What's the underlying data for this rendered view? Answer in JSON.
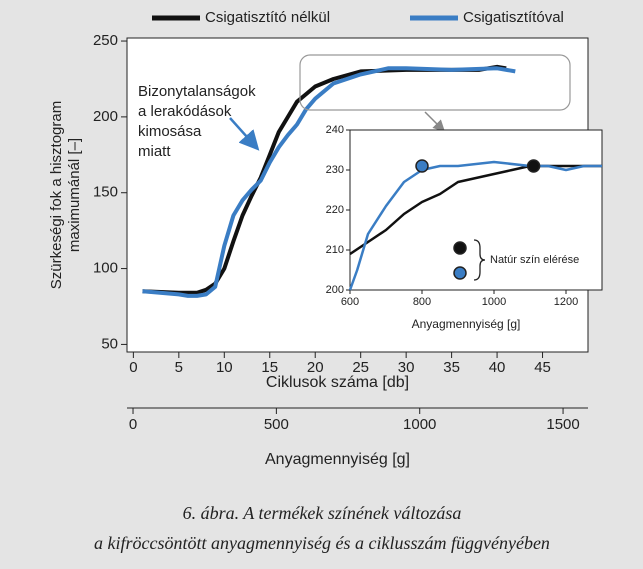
{
  "chart_data": [
    {
      "type": "line",
      "series": [
        {
          "name": "Csigatisztító nélkül",
          "color": "#111111",
          "x": [
            1,
            5,
            7,
            8,
            9,
            10,
            11,
            12,
            13,
            14,
            15,
            16,
            17,
            18,
            19,
            20,
            22,
            25,
            30,
            35,
            38,
            40,
            41
          ],
          "y": [
            85,
            84,
            84,
            86,
            90,
            100,
            118,
            135,
            148,
            160,
            175,
            190,
            200,
            210,
            215,
            220,
            225,
            230,
            231,
            231,
            231,
            233,
            232
          ]
        },
        {
          "name": "Csigatisztítóval",
          "color": "#3a7dc4",
          "x": [
            1,
            5,
            6,
            7,
            8,
            9,
            10,
            11,
            12,
            13,
            14,
            15,
            16,
            17,
            18,
            19,
            20,
            22,
            25,
            28,
            30,
            35,
            40,
            42
          ],
          "y": [
            85,
            83,
            82,
            82,
            83,
            88,
            115,
            135,
            145,
            152,
            158,
            170,
            180,
            188,
            195,
            205,
            212,
            222,
            228,
            232,
            232,
            231,
            232,
            230
          ]
        }
      ],
      "xlim": [
        -0.7,
        50
      ],
      "xticks": [
        0,
        5,
        10,
        15,
        20,
        25,
        30,
        35,
        40,
        45
      ],
      "ylim": [
        45,
        252
      ],
      "yticks": [
        50,
        100,
        150,
        200,
        250
      ],
      "xlabel": "Ciklusok száma [db]",
      "ylabel": [
        "Szürkeségi fok a hisztogram",
        "maximumánál [–]"
      ],
      "x2lim": [
        -21,
        1587
      ],
      "x2ticks": [
        0,
        500,
        1000,
        1500
      ],
      "x2label": "Anyagmennyiség [g]",
      "annotation": [
        "Bizonytalanságok",
        "a lerakódások",
        "kimosása",
        "miatt"
      ]
    },
    {
      "type": "line",
      "series": [
        {
          "color": "#111111",
          "x": [
            600,
            650,
            700,
            750,
            800,
            850,
            900,
            950,
            1000,
            1050,
            1100,
            1150,
            1200,
            1300
          ],
          "y": [
            209,
            212,
            215,
            219,
            222,
            224,
            227,
            228,
            229,
            230,
            231,
            231,
            231,
            231
          ]
        },
        {
          "color": "#3a7dc4",
          "x": [
            600,
            620,
            650,
            700,
            750,
            800,
            850,
            900,
            1000,
            1100,
            1150,
            1200,
            1250,
            1300
          ],
          "y": [
            200,
            205,
            214,
            221,
            227,
            230,
            231,
            231,
            232,
            231,
            231,
            230,
            231,
            231
          ]
        }
      ],
      "points": [
        {
          "x": 1110,
          "y": 231,
          "color": "#111111"
        },
        {
          "x": 800,
          "y": 231,
          "color": "#3a7dc4"
        }
      ],
      "points_label": "Natúr szín elérése",
      "xlim": [
        600,
        1300
      ],
      "xticks": [
        600,
        800,
        1000,
        1200
      ],
      "ylim": [
        200,
        240
      ],
      "yticks": [
        200,
        210,
        220,
        230,
        240
      ],
      "xlabel": "Anyagmennyiség [g]"
    }
  ],
  "caption": [
    "6. ábra. A termékek színének változása",
    "a kifröccsöntött anyagmennyiség és a ciklusszám függvényében"
  ]
}
